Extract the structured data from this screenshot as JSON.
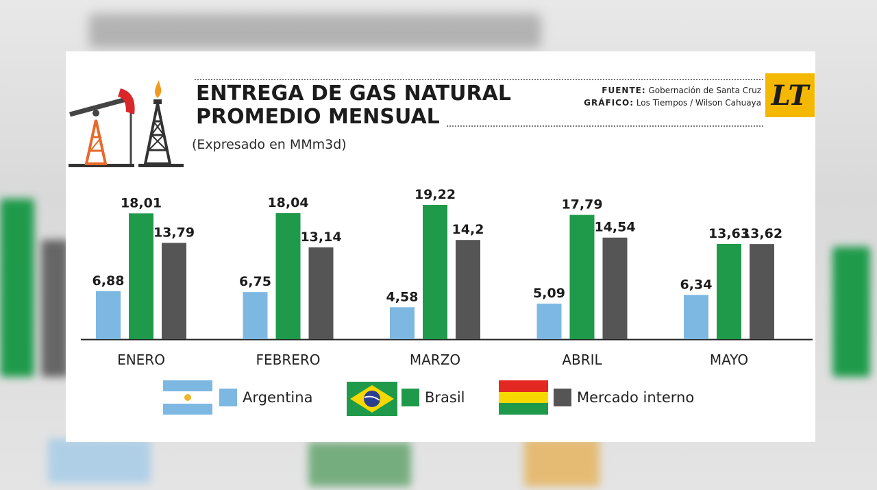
{
  "header": {
    "title_line1": "ENTREGA DE GAS NATURAL",
    "title_line2": "PROMEDIO MENSUAL",
    "subtitle": "(Expresado en MMm3d)",
    "source_label": "FUENTE:",
    "source_value": "Gobernación de Santa Cruz",
    "graphic_label": "GRÁFICO:",
    "graphic_value": "Los Tiempos / Wilson Cahuaya",
    "logo_text": "LT"
  },
  "colors": {
    "argentina": "#7db8e3",
    "brasil": "#1f9a4b",
    "mercado": "#555555",
    "logo_bg": "#f5b800"
  },
  "legend": [
    {
      "label": "Argentina",
      "flag": "argentina-flag",
      "color": "#7db8e3"
    },
    {
      "label": "Brasil",
      "flag": "brazil-flag",
      "color": "#1f9a4b"
    },
    {
      "label": "Mercado interno",
      "flag": "bolivia-flag",
      "color": "#555555"
    }
  ],
  "chart_data": {
    "type": "bar",
    "categories": [
      "ENERO",
      "FEBRERO",
      "MARZO",
      "ABRIL",
      "MAYO"
    ],
    "series": [
      {
        "name": "Argentina",
        "values": [
          6.88,
          6.75,
          4.58,
          5.09,
          6.34
        ],
        "labels": [
          "6,88",
          "6,75",
          "4,58",
          "5,09",
          "6,34"
        ]
      },
      {
        "name": "Brasil",
        "values": [
          18.01,
          18.04,
          19.22,
          17.79,
          13.63
        ],
        "labels": [
          "18,01",
          "18,04",
          "19,22",
          "17,79",
          "13,63"
        ]
      },
      {
        "name": "Mercado interno",
        "values": [
          13.79,
          13.14,
          14.2,
          14.54,
          13.62
        ],
        "labels": [
          "13,79",
          "13,14",
          "14,2",
          "14,54",
          "13,62"
        ]
      }
    ],
    "title": "ENTREGA DE GAS NATURAL PROMEDIO MENSUAL",
    "subtitle": "(Expresado en MMm3d)",
    "ylim": [
      0,
      19.22
    ],
    "grid": false,
    "legend_position": "bottom"
  }
}
